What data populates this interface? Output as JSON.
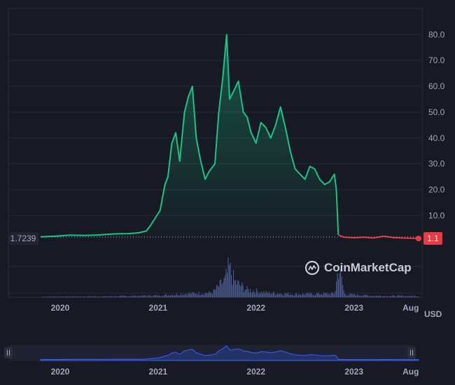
{
  "currency_label": "USD",
  "start_price_label": "1.7239",
  "current_price_label": "1.1",
  "watermark": "CoinMarketCap",
  "colors": {
    "up": "#16c784",
    "down": "#ea3943",
    "volume": "#4b5a8c",
    "navigator_line": "#3861fb",
    "background": "#171924"
  },
  "chart_data": {
    "type": "line",
    "y_ticks": [
      "10.0",
      "20.0",
      "30.0",
      "40.0",
      "50.0",
      "60.0",
      "70.0",
      "80.0"
    ],
    "x_ticks": [
      "2020",
      "2021",
      "2022",
      "2023",
      "Aug"
    ],
    "ylim": [
      0,
      85
    ],
    "series": [
      {
        "values": [
          [
            2019.8,
            1.72
          ],
          [
            2019.95,
            2.0
          ],
          [
            2020.1,
            2.4
          ],
          [
            2020.25,
            2.3
          ],
          [
            2020.4,
            2.5
          ],
          [
            2020.55,
            2.9
          ],
          [
            2020.7,
            3.0
          ],
          [
            2020.8,
            3.3
          ],
          [
            2020.88,
            4.0
          ],
          [
            2020.92,
            6.0
          ],
          [
            2020.97,
            9.0
          ],
          [
            2021.02,
            12.0
          ],
          [
            2021.07,
            22.0
          ],
          [
            2021.1,
            25.0
          ],
          [
            2021.14,
            38.0
          ],
          [
            2021.18,
            42.0
          ],
          [
            2021.22,
            31.0
          ],
          [
            2021.27,
            50.0
          ],
          [
            2021.31,
            56.0
          ],
          [
            2021.35,
            60.0
          ],
          [
            2021.39,
            40.0
          ],
          [
            2021.43,
            32.0
          ],
          [
            2021.48,
            24.0
          ],
          [
            2021.52,
            27.0
          ],
          [
            2021.58,
            30.0
          ],
          [
            2021.62,
            50.0
          ],
          [
            2021.66,
            63.0
          ],
          [
            2021.7,
            80.0
          ],
          [
            2021.73,
            55.0
          ],
          [
            2021.77,
            58.0
          ],
          [
            2021.82,
            62.0
          ],
          [
            2021.87,
            50.0
          ],
          [
            2021.91,
            48.0
          ],
          [
            2021.95,
            42.0
          ],
          [
            2022.0,
            38.0
          ],
          [
            2022.05,
            46.0
          ],
          [
            2022.1,
            44.0
          ],
          [
            2022.15,
            40.0
          ],
          [
            2022.2,
            45.0
          ],
          [
            2022.25,
            52.0
          ],
          [
            2022.3,
            44.0
          ],
          [
            2022.35,
            35.0
          ],
          [
            2022.4,
            28.0
          ],
          [
            2022.45,
            26.0
          ],
          [
            2022.5,
            24.0
          ],
          [
            2022.55,
            29.0
          ],
          [
            2022.6,
            28.0
          ],
          [
            2022.65,
            24.0
          ],
          [
            2022.7,
            22.0
          ],
          [
            2022.75,
            23.0
          ],
          [
            2022.8,
            26.0
          ],
          [
            2022.82,
            20.0
          ],
          [
            2022.84,
            2.5
          ],
          [
            2022.9,
            1.6
          ],
          [
            2023.0,
            1.4
          ],
          [
            2023.1,
            1.6
          ],
          [
            2023.2,
            1.3
          ],
          [
            2023.3,
            2.0
          ],
          [
            2023.4,
            1.5
          ],
          [
            2023.5,
            1.3
          ],
          [
            2023.6,
            1.2
          ],
          [
            2023.66,
            1.1
          ]
        ]
      }
    ],
    "volume_profile": [
      [
        2019.8,
        0.02
      ],
      [
        2020.5,
        0.03
      ],
      [
        2021.0,
        0.06
      ],
      [
        2021.3,
        0.12
      ],
      [
        2021.55,
        0.15
      ],
      [
        2021.68,
        0.55
      ],
      [
        2021.72,
        0.95
      ],
      [
        2021.78,
        0.5
      ],
      [
        2021.9,
        0.25
      ],
      [
        2022.1,
        0.15
      ],
      [
        2022.4,
        0.1
      ],
      [
        2022.8,
        0.12
      ],
      [
        2022.84,
        1.0
      ],
      [
        2022.9,
        0.1
      ],
      [
        2023.2,
        0.05
      ],
      [
        2023.66,
        0.04
      ]
    ]
  }
}
